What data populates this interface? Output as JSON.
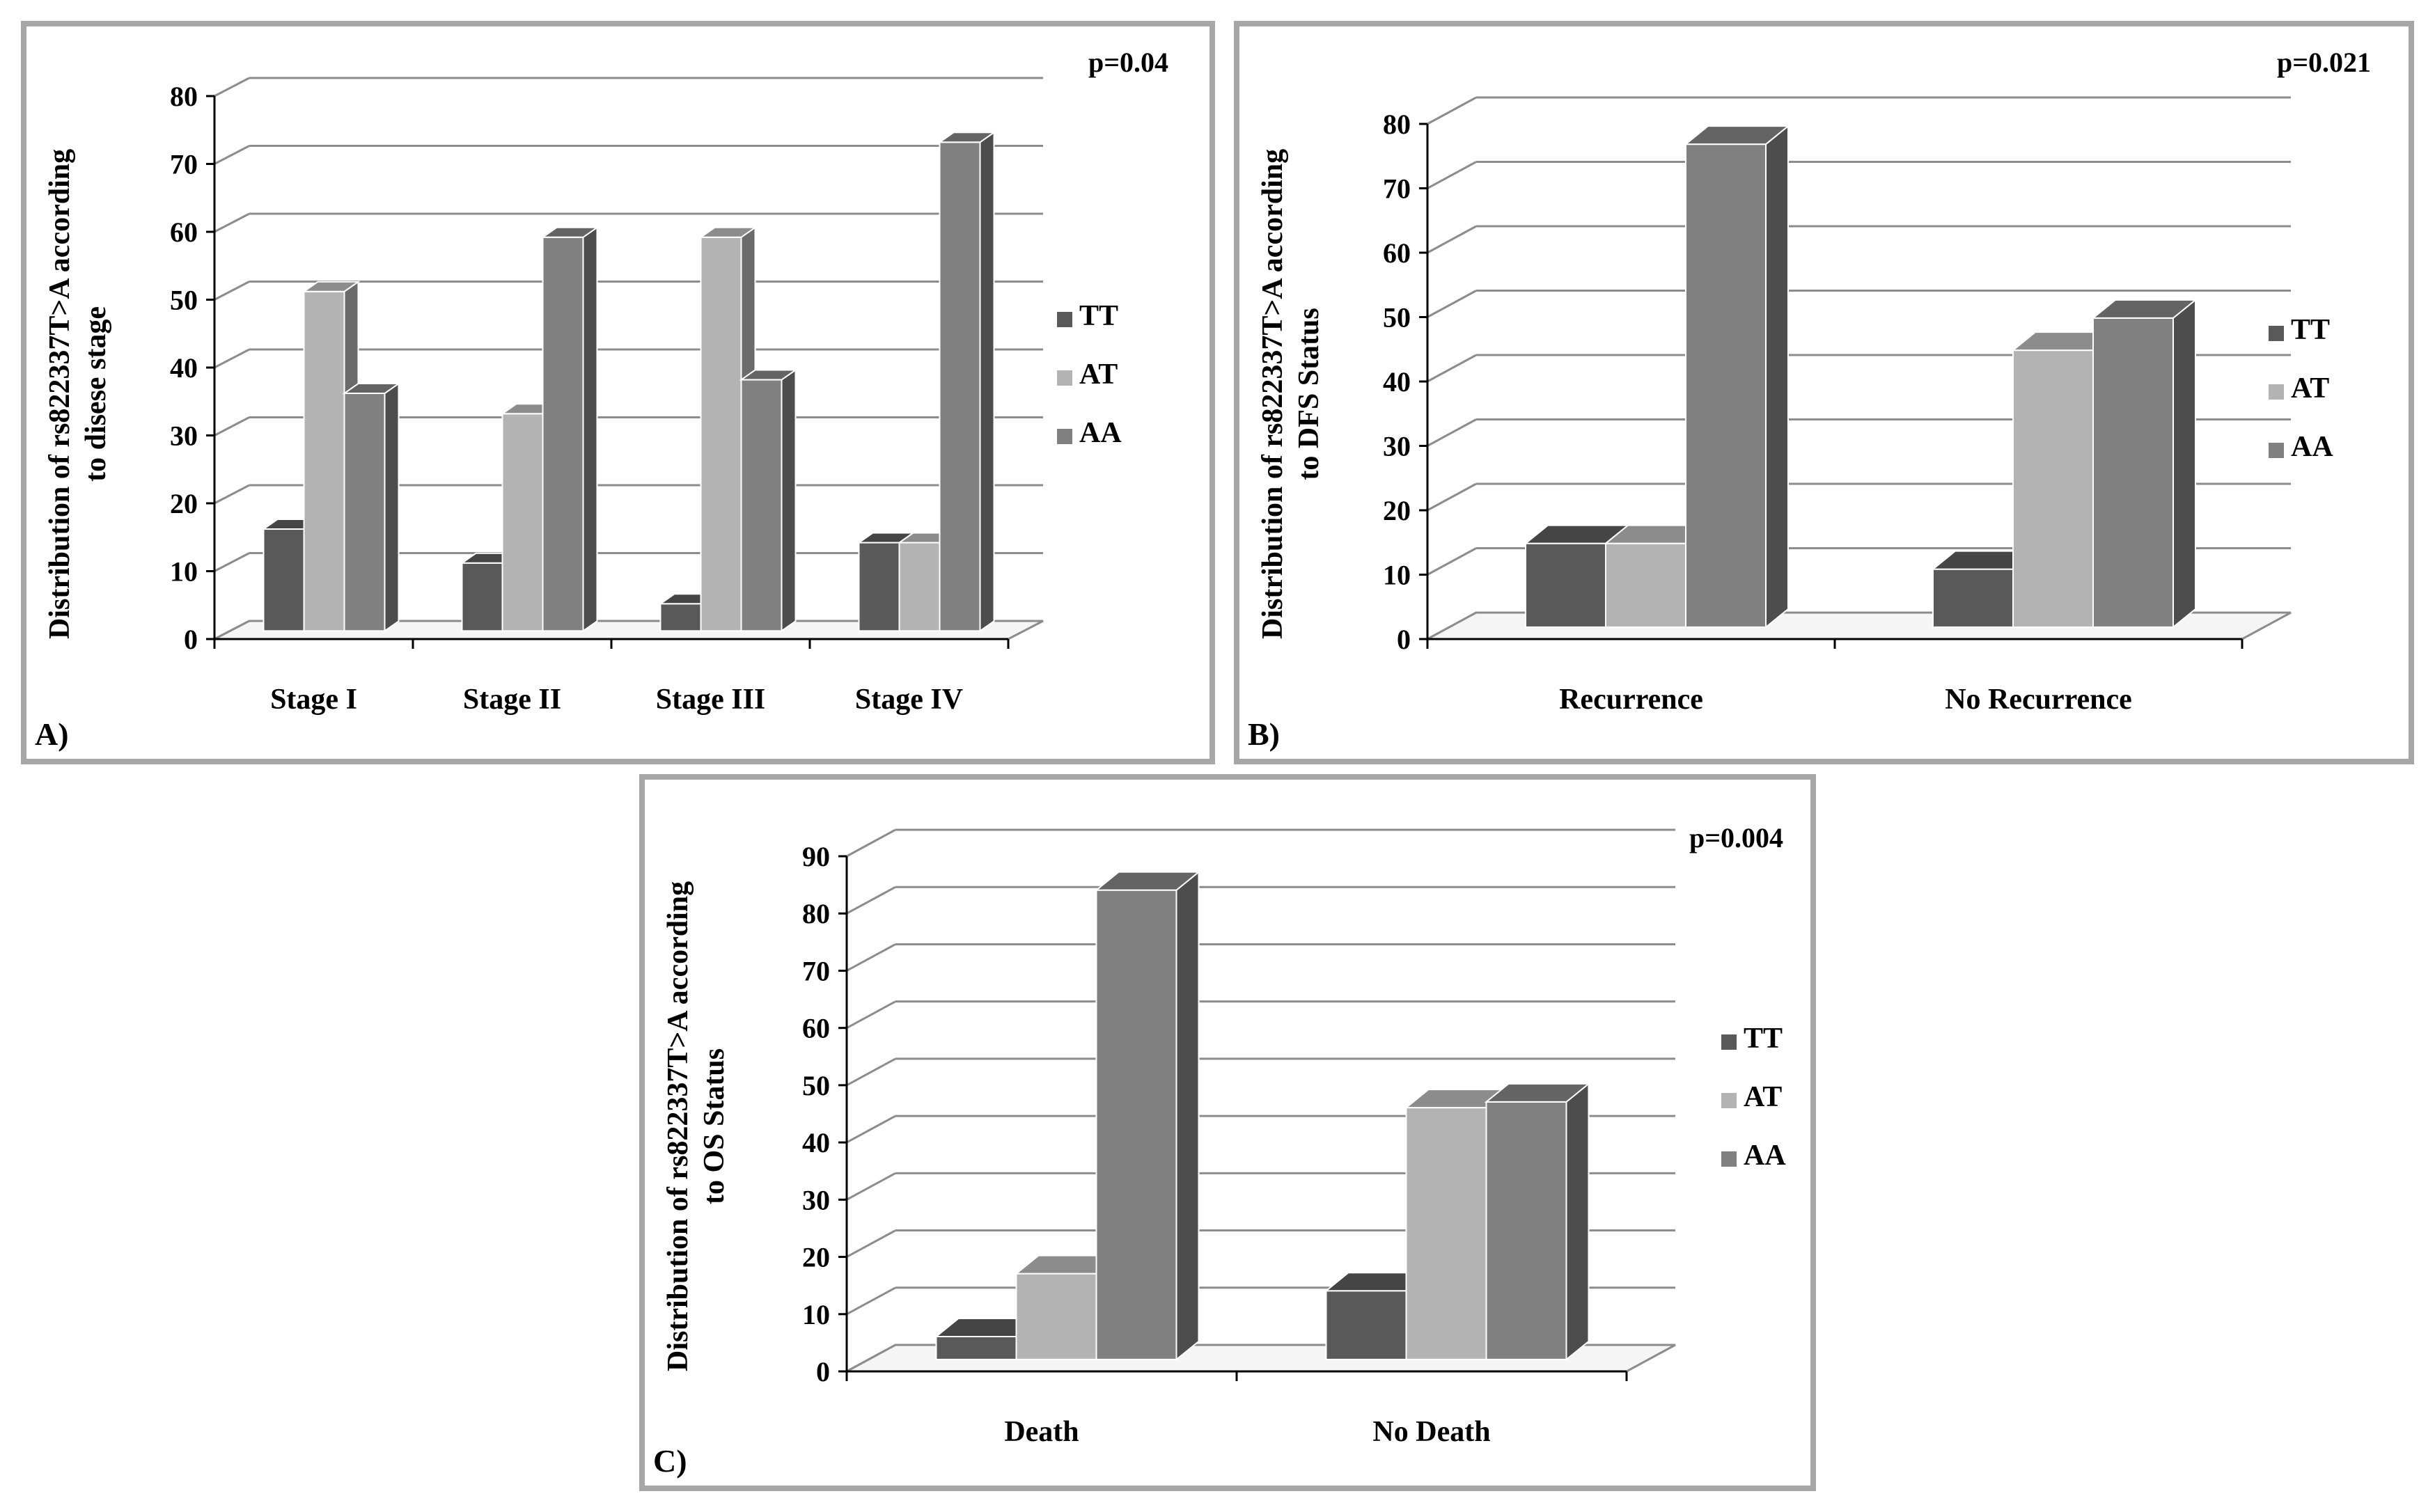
{
  "colors": {
    "TT": "#595959",
    "AT": "#b3b3b3",
    "AA": "#808080",
    "grid": "#8c8c8c",
    "axis": "#000000"
  },
  "panels": [
    {
      "id": "a",
      "label": "A)",
      "pvalue": "p=0.04",
      "ylabel_line1": "Distribution of rs822337T>A according",
      "ylabel_line2": "to disese stage",
      "legend": [
        "TT",
        "AT",
        "AA"
      ]
    },
    {
      "id": "b",
      "label": "B)",
      "pvalue": "p=0.021",
      "ylabel_line1": "Distribution of rs822337T>A according",
      "ylabel_line2": "to DFS Status",
      "legend": [
        "TT",
        "AT",
        "AA"
      ]
    },
    {
      "id": "c",
      "label": "C)",
      "pvalue": "p=0.004",
      "ylabel_line1": "Distribution of rs822337T>A according",
      "ylabel_line2": "to OS Status",
      "legend": [
        "TT",
        "AT",
        "AA"
      ]
    }
  ],
  "chart_data": [
    {
      "type": "bar",
      "title": "A)",
      "annotation": "p=0.04",
      "xlabel": "",
      "ylabel": "Distribution of rs822337T>A according to disese stage",
      "categories": [
        "Stage I",
        "Stage II",
        "Stage III",
        "Stage IV"
      ],
      "series": [
        {
          "name": "TT",
          "values": [
            15,
            10,
            4,
            13
          ]
        },
        {
          "name": "AT",
          "values": [
            50,
            32,
            58,
            13
          ]
        },
        {
          "name": "AA",
          "values": [
            35,
            58,
            37,
            72
          ]
        }
      ],
      "ylim": [
        0,
        80
      ],
      "yticks": [
        0,
        10,
        20,
        30,
        40,
        50,
        60,
        70,
        80
      ],
      "grid": true,
      "legend": "right"
    },
    {
      "type": "bar",
      "title": "B)",
      "annotation": "p=0.021",
      "xlabel": "",
      "ylabel": "Distribution of rs822337T>A according to DFS Status",
      "categories": [
        "Recurrence",
        "No Recurrence"
      ],
      "series": [
        {
          "name": "TT",
          "values": [
            13,
            9
          ]
        },
        {
          "name": "AT",
          "values": [
            13,
            43
          ]
        },
        {
          "name": "AA",
          "values": [
            75,
            48
          ]
        }
      ],
      "ylim": [
        0,
        80
      ],
      "yticks": [
        0,
        10,
        20,
        30,
        40,
        50,
        60,
        70,
        80
      ],
      "grid": true,
      "legend": "right"
    },
    {
      "type": "bar",
      "title": "C)",
      "annotation": "p=0.004",
      "xlabel": "",
      "ylabel": "Distribution of rs822337T>A according to OS Status",
      "categories": [
        "Death",
        "No Death"
      ],
      "series": [
        {
          "name": "TT",
          "values": [
            4,
            12
          ]
        },
        {
          "name": "AT",
          "values": [
            15,
            44
          ]
        },
        {
          "name": "AA",
          "values": [
            82,
            45
          ]
        }
      ],
      "ylim": [
        0,
        90
      ],
      "yticks": [
        0,
        10,
        20,
        30,
        40,
        50,
        60,
        70,
        80,
        90
      ],
      "grid": true,
      "legend": "right"
    }
  ]
}
